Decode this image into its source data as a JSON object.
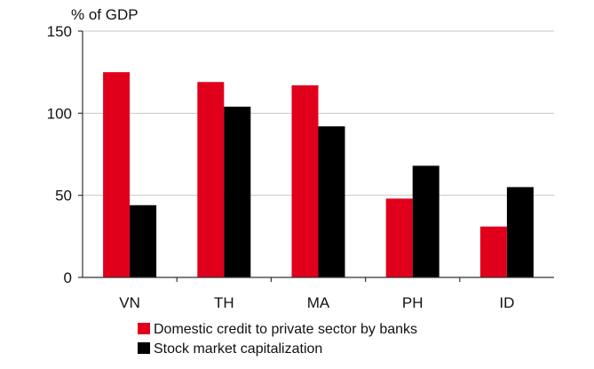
{
  "chart_data": {
    "type": "bar",
    "title": "",
    "ylabel": "% of GDP",
    "xlabel": "",
    "ylim": [
      0,
      150
    ],
    "yticks": [
      0,
      50,
      100,
      150
    ],
    "grid": true,
    "legend_position": "bottom-center",
    "categories": [
      "VN",
      "TH",
      "MA",
      "PH",
      "ID"
    ],
    "series": [
      {
        "name": "Domestic credit to private sector by banks",
        "color": "#e0001b",
        "values": [
          125,
          119,
          117,
          48,
          31
        ]
      },
      {
        "name": "Stock market capitalization",
        "color": "#000000",
        "values": [
          44,
          104,
          92,
          68,
          55
        ]
      }
    ]
  }
}
